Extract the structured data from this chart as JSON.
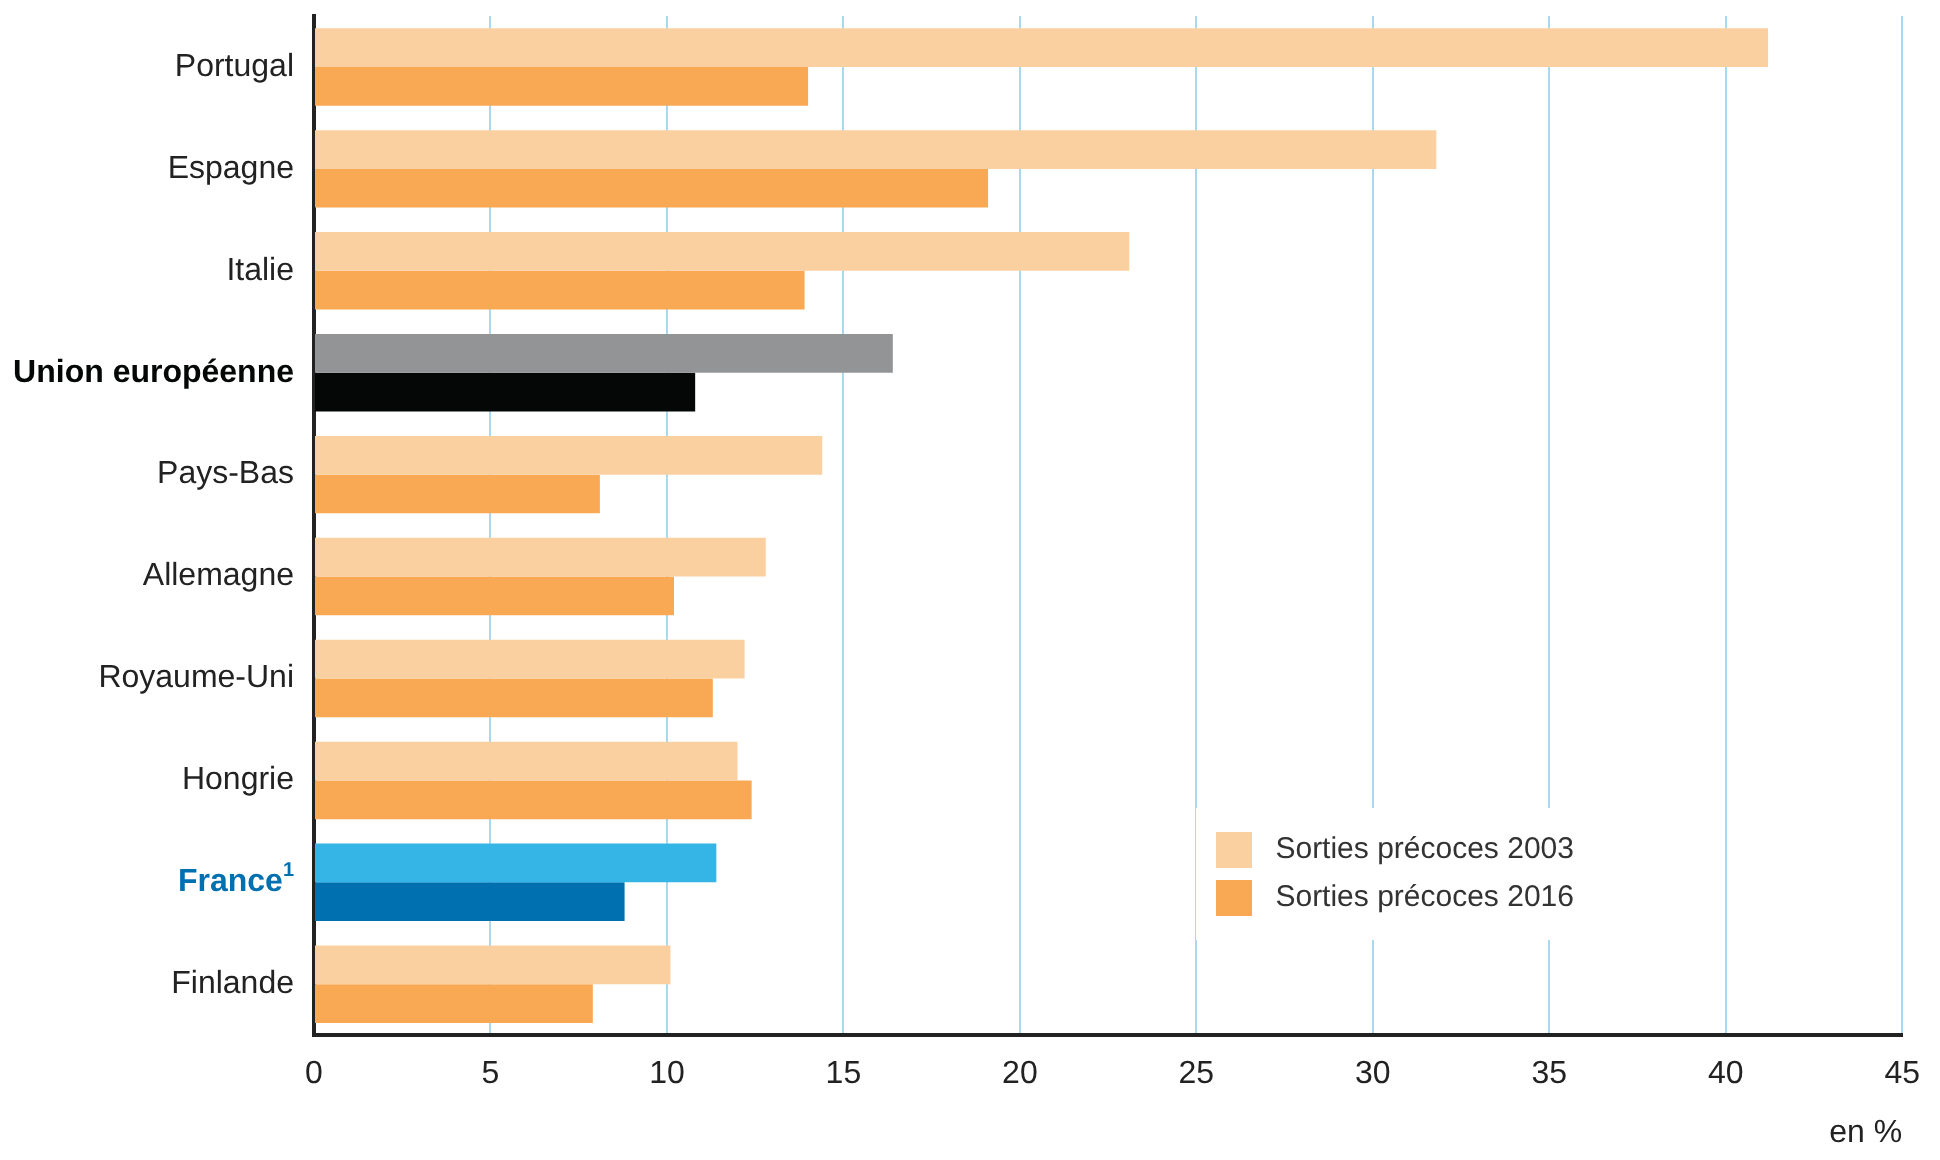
{
  "chart_data": {
    "type": "bar",
    "orientation": "horizontal",
    "xlabel": "en %",
    "categories": [
      "Portugal",
      "Espagne",
      "Italie",
      "Union européenne",
      "Pays-Bas",
      "Allemagne",
      "Royaume-Uni",
      "Hongrie",
      "France$^{1}$",
      "Finlande"
    ],
    "series": [
      {
        "name": "Sorties précoces 2003",
        "color": "#fbd0a1",
        "colors": [
          "#fbd0a1",
          "#fbd0a1",
          "#fbd0a1",
          "#939496",
          "#fbd0a1",
          "#fbd0a1",
          "#fbd0a1",
          "#fbd0a1",
          "#35b5e6",
          "#fbd0a1"
        ],
        "values": [
          41.2,
          31.8,
          23.1,
          16.4,
          14.4,
          12.8,
          12.2,
          12.0,
          11.4,
          10.1
        ]
      },
      {
        "name": "Sorties précoces 2016",
        "color": "#f9a953",
        "colors": [
          "#f9a953",
          "#f9a953",
          "#f9a953",
          "#040706",
          "#f9a953",
          "#f9a953",
          "#f9a953",
          "#f9a953",
          "#0070b0",
          "#f9a953"
        ],
        "values": [
          14.0,
          19.1,
          13.9,
          10.8,
          8.1,
          10.2,
          11.3,
          12.4,
          8.8,
          7.9
        ]
      }
    ],
    "xlim": [
      0,
      45
    ],
    "xticks": [
      0,
      5,
      10,
      15,
      20,
      25,
      30,
      35,
      40,
      45
    ],
    "grid": "x",
    "legend": "bottom right"
  }
}
